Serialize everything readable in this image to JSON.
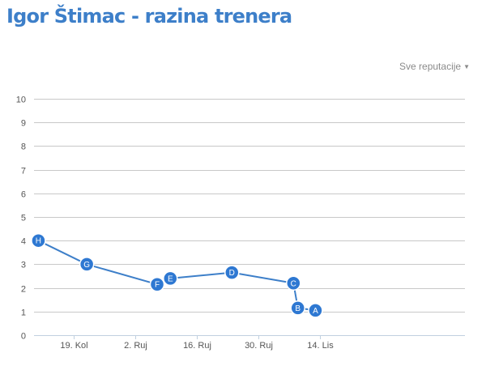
{
  "header": {
    "title": "Igor Štimac - razina trenera"
  },
  "filter": {
    "label": "Sve reputacije",
    "caret_icon": "caret-down-icon"
  },
  "chart_data": {
    "type": "line",
    "title": "",
    "xlabel": "",
    "ylabel": "",
    "ylim": [
      0,
      10
    ],
    "yticks": [
      0,
      1,
      2,
      3,
      4,
      5,
      6,
      7,
      8,
      9,
      10
    ],
    "xlim": [
      "2013-07-10",
      "2013-10-16"
    ],
    "xticks": [
      {
        "date": "2013-07-19",
        "label": "19. Kol"
      },
      {
        "date": "2013-08-02",
        "label": "2. Ruj"
      },
      {
        "date": "2013-08-16",
        "label": "16. Ruj"
      },
      {
        "date": "2013-08-30",
        "label": "30. Ruj"
      },
      {
        "date": "2013-09-13",
        "label": "14. Lis"
      }
    ],
    "grid": true,
    "line_color": "#3d7fc9",
    "marker_color": "#2e78d2",
    "points": [
      {
        "label": "H",
        "x": "2013-07-11",
        "y": 4.0
      },
      {
        "label": "G",
        "x": "2013-07-22",
        "y": 3.0
      },
      {
        "label": "F",
        "x": "2013-08-07",
        "y": 2.15
      },
      {
        "label": "E",
        "x": "2013-08-10",
        "y": 2.4
      },
      {
        "label": "D",
        "x": "2013-08-24",
        "y": 2.65
      },
      {
        "label": "C",
        "x": "2013-09-07",
        "y": 2.2
      },
      {
        "label": "B",
        "x": "2013-09-08",
        "y": 1.15
      },
      {
        "label": "A",
        "x": "2013-09-12",
        "y": 1.05
      }
    ]
  }
}
